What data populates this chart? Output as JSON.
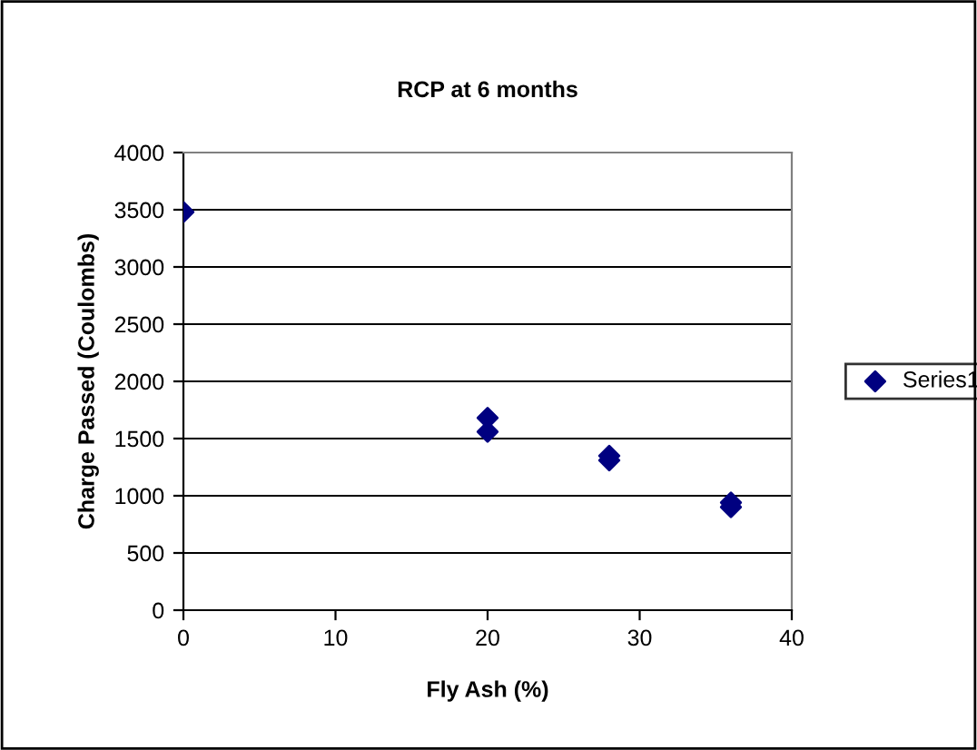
{
  "chart_data": {
    "type": "scatter",
    "title": "RCP at 6 months",
    "xlabel": "Fly Ash (%)",
    "ylabel": "Charge Passed (Coulombs)",
    "series": [
      {
        "name": "Series1",
        "color": "#000080",
        "x": [
          0,
          20,
          20,
          28,
          28,
          36,
          36
        ],
        "values": [
          3480,
          1680,
          1560,
          1350,
          1310,
          940,
          900
        ]
      }
    ],
    "xlim": [
      0,
      40
    ],
    "xticks": [
      0,
      10,
      20,
      30,
      40
    ],
    "ylim": [
      0,
      4000
    ],
    "yticks": [
      0,
      500,
      1000,
      1500,
      2000,
      2500,
      3000,
      3500,
      4000
    ],
    "grid": "y",
    "legend": "right",
    "marker": "diamond"
  }
}
